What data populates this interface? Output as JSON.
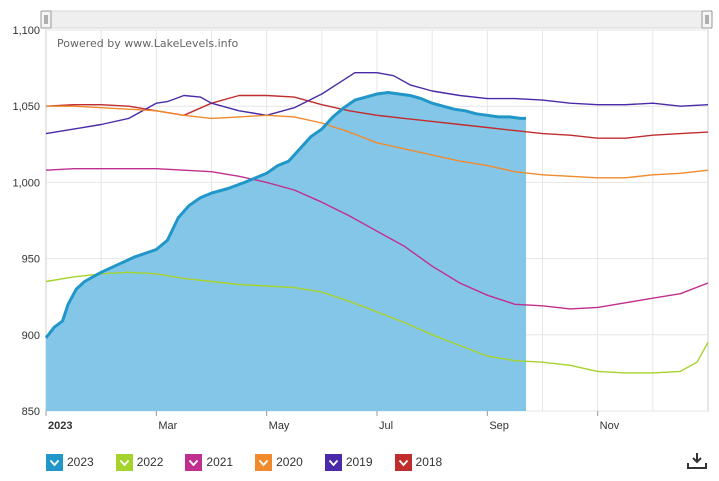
{
  "watermark": "Powered by www.LakeLevels.info",
  "download_icon": "download-icon",
  "chart_data": {
    "type": "line",
    "x_unit": "month",
    "x_tick_labels": [
      "2023",
      "Mar",
      "May",
      "Jul",
      "Sep",
      "Nov"
    ],
    "y_tick_labels": [
      "850",
      "900",
      "950",
      "1,000",
      "1,050",
      "1,100"
    ],
    "ylim": [
      850,
      1100
    ],
    "xlim": [
      0,
      12
    ],
    "grid": true,
    "legend_placement": "bottom",
    "series": [
      {
        "name": "2023",
        "color": "#2196c8",
        "fill": "#84c6e7",
        "style": "area",
        "x": [
          0,
          0.15,
          0.3,
          0.4,
          0.55,
          0.7,
          1,
          1.3,
          1.6,
          2,
          2.2,
          2.4,
          2.6,
          2.8,
          3,
          3.3,
          3.6,
          4,
          4.2,
          4.4,
          4.6,
          4.8,
          5,
          5.2,
          5.4,
          5.6,
          5.8,
          6,
          6.2,
          6.4,
          6.6,
          6.8,
          7,
          7.2,
          7.4,
          7.6,
          7.8,
          8,
          8.2,
          8.4,
          8.6,
          8.7
        ],
        "y": [
          898,
          905,
          909,
          920,
          930,
          935,
          941,
          946,
          951,
          956,
          962,
          977,
          985,
          990,
          993,
          996,
          1000,
          1006,
          1011,
          1014,
          1022,
          1030,
          1035,
          1043,
          1049,
          1054,
          1056,
          1058,
          1059,
          1058,
          1057,
          1055,
          1052,
          1050,
          1048,
          1047,
          1045,
          1044,
          1043,
          1043,
          1042,
          1042
        ]
      },
      {
        "name": "2022",
        "color": "#a6d22e",
        "x": [
          0,
          0.5,
          1,
          1.5,
          2,
          2.5,
          3,
          3.5,
          4,
          4.5,
          5,
          5.5,
          6,
          6.5,
          7,
          7.5,
          8,
          8.5,
          9,
          9.5,
          10,
          10.5,
          11,
          11.5,
          11.8,
          12
        ],
        "y": [
          935,
          938,
          940,
          941,
          940,
          937,
          935,
          933,
          932,
          931,
          928,
          922,
          915,
          908,
          900,
          893,
          886,
          883,
          882,
          880,
          876,
          875,
          875,
          876,
          882,
          895
        ]
      },
      {
        "name": "2021",
        "color": "#c12f8e",
        "x": [
          0,
          0.5,
          1,
          1.5,
          2,
          2.5,
          3,
          3.5,
          4,
          4.5,
          5,
          5.5,
          6,
          6.5,
          7,
          7.5,
          8,
          8.5,
          9,
          9.5,
          10,
          10.5,
          11,
          11.5,
          12
        ],
        "y": [
          1008,
          1009,
          1009,
          1009,
          1009,
          1008,
          1007,
          1004,
          1000,
          995,
          987,
          978,
          968,
          958,
          945,
          934,
          926,
          920,
          919,
          917,
          918,
          921,
          924,
          927,
          934
        ]
      },
      {
        "name": "2020",
        "color": "#f08a2d",
        "x": [
          0,
          0.5,
          1,
          1.5,
          2,
          2.5,
          3,
          3.5,
          4,
          4.5,
          5,
          5.5,
          6,
          6.5,
          7,
          7.5,
          8,
          8.5,
          9,
          9.5,
          10,
          10.5,
          11,
          11.5,
          12
        ],
        "y": [
          1050,
          1050,
          1049,
          1048,
          1047,
          1044,
          1042,
          1043,
          1044,
          1043,
          1039,
          1033,
          1026,
          1022,
          1018,
          1014,
          1011,
          1007,
          1005,
          1004,
          1003,
          1003,
          1005,
          1006,
          1008
        ]
      },
      {
        "name": "2019",
        "color": "#4a2aa8",
        "x": [
          0,
          0.5,
          1,
          1.5,
          2,
          2.2,
          2.5,
          2.8,
          3,
          3.5,
          4,
          4.5,
          5,
          5.3,
          5.6,
          6,
          6.3,
          6.6,
          7,
          7.5,
          8,
          8.5,
          9,
          9.5,
          10,
          10.5,
          11,
          11.5,
          12
        ],
        "y": [
          1032,
          1035,
          1038,
          1042,
          1052,
          1053,
          1057,
          1056,
          1052,
          1047,
          1044,
          1049,
          1058,
          1065,
          1072,
          1072,
          1070,
          1064,
          1060,
          1057,
          1055,
          1055,
          1054,
          1052,
          1051,
          1051,
          1052,
          1050,
          1051
        ]
      },
      {
        "name": "2018",
        "color": "#c02d2d",
        "x": [
          0,
          0.5,
          1,
          1.5,
          2,
          2.5,
          3,
          3.5,
          4,
          4.5,
          5,
          5.5,
          6,
          6.5,
          7,
          7.5,
          8,
          8.5,
          9,
          9.5,
          10,
          10.5,
          11,
          11.5,
          12
        ],
        "y": [
          1050,
          1051,
          1051,
          1050,
          1047,
          1044,
          1052,
          1057,
          1057,
          1056,
          1051,
          1047,
          1044,
          1042,
          1040,
          1038,
          1036,
          1034,
          1032,
          1031,
          1029,
          1029,
          1031,
          1032,
          1033
        ]
      }
    ]
  },
  "legend": [
    {
      "label": "2023",
      "color": "#2196c8",
      "icon": "chevron-down-icon"
    },
    {
      "label": "2022",
      "color": "#a6d22e",
      "icon": "chevron-down-icon"
    },
    {
      "label": "2021",
      "color": "#c12f8e",
      "icon": "chevron-down-icon"
    },
    {
      "label": "2020",
      "color": "#f08a2d",
      "icon": "chevron-down-icon"
    },
    {
      "label": "2019",
      "color": "#4a2aa8",
      "icon": "chevron-down-icon"
    },
    {
      "label": "2018",
      "color": "#c02d2d",
      "icon": "chevron-down-icon"
    }
  ]
}
